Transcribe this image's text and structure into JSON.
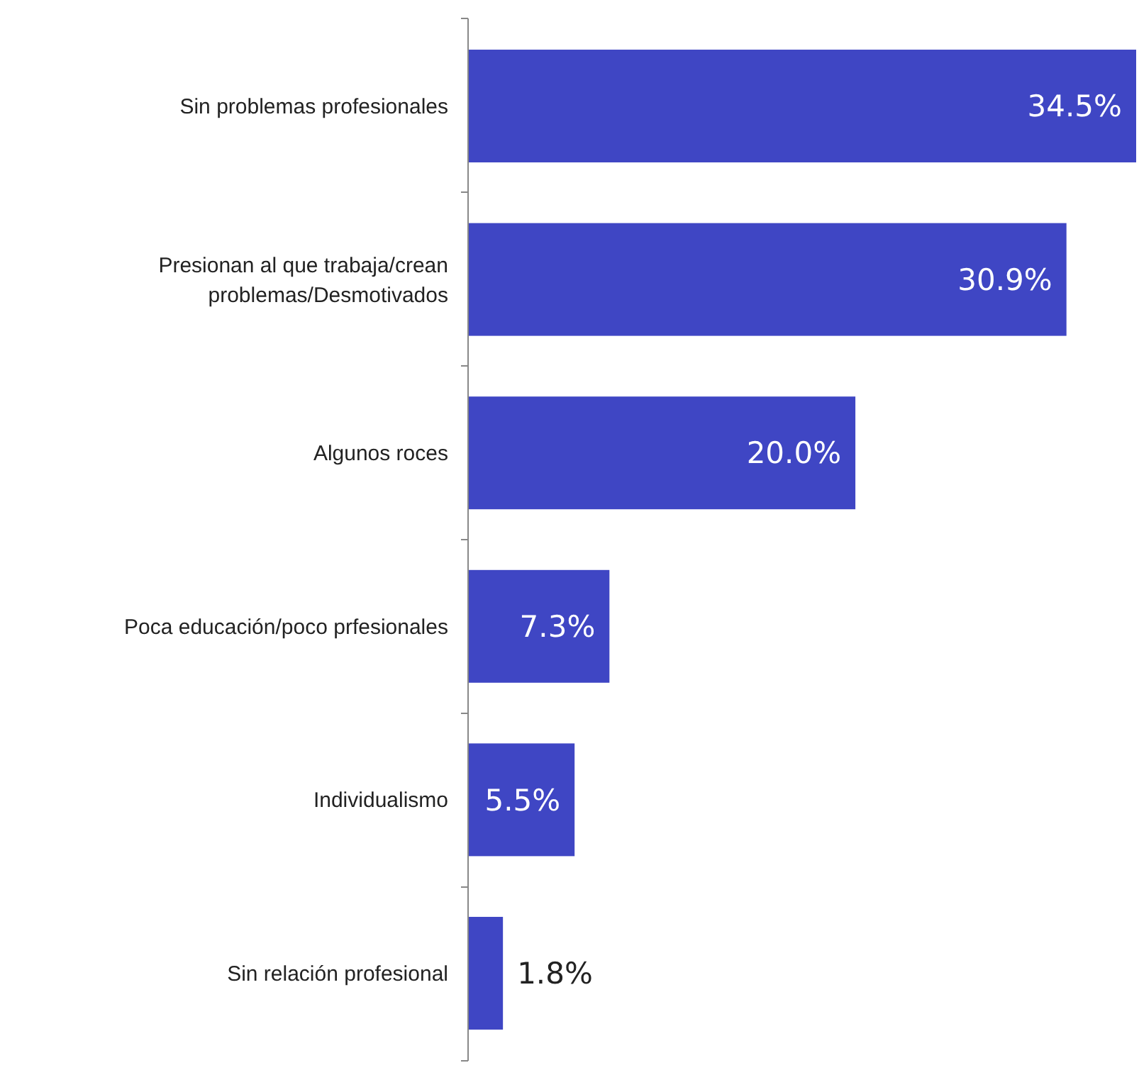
{
  "chart_data": {
    "type": "bar",
    "orientation": "horizontal",
    "categories": [
      "Sin problemas profesionales",
      "Presionan al que trabaja/crean problemas/Desmotivados",
      "Algunos roces",
      "Poca educación/poco prfesionales",
      "Individualismo",
      "Sin relación profesional"
    ],
    "values": [
      34.5,
      30.9,
      20.0,
      7.3,
      5.5,
      1.8
    ],
    "value_labels": [
      "34.5%",
      "30.9%",
      "20.0%",
      "7.3%",
      "5.5%",
      "1.8%"
    ],
    "color": "#3f46c4"
  }
}
